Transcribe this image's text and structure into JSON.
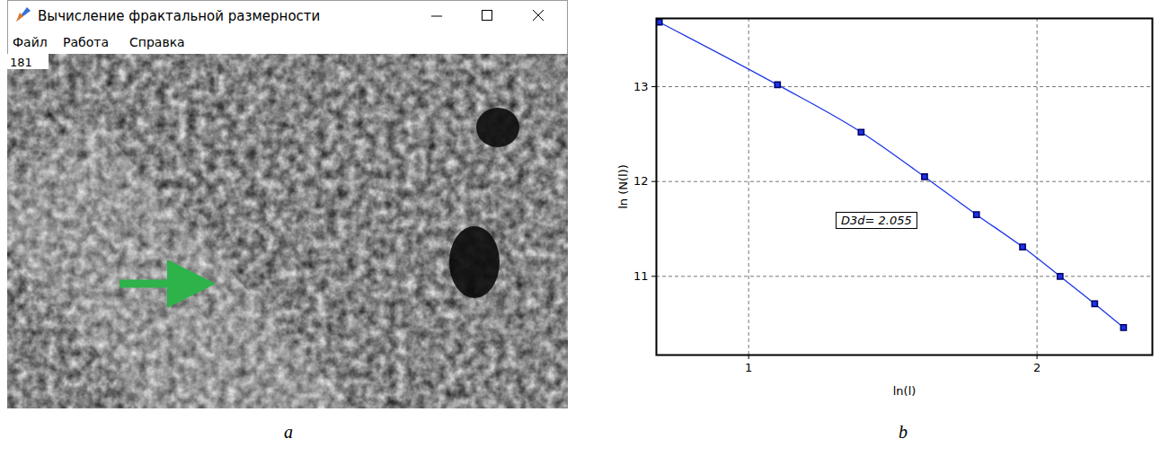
{
  "panel_labels": [
    "a",
    "b"
  ],
  "window": {
    "title": "Вычисление фрактальной размерности",
    "menu": [
      "Файл",
      "Работа",
      "Справка"
    ],
    "counter": "181"
  },
  "chart_data": {
    "type": "line",
    "x": [
      0.69,
      1.1,
      1.39,
      1.61,
      1.79,
      1.95,
      2.08,
      2.2,
      2.3
    ],
    "values": [
      13.68,
      13.02,
      12.52,
      12.05,
      11.65,
      11.31,
      11.0,
      10.71,
      10.46
    ],
    "xlim": [
      0.68,
      2.4
    ],
    "ylim": [
      10.17,
      13.72
    ],
    "xticks": [
      1,
      2
    ],
    "yticks": [
      11,
      12,
      13
    ],
    "x_label": "ln(l)",
    "y_label": "ln (N(l))",
    "annotation": "D3d= 2.055",
    "grid": true,
    "color": "#1a33e6",
    "marker": "square"
  }
}
